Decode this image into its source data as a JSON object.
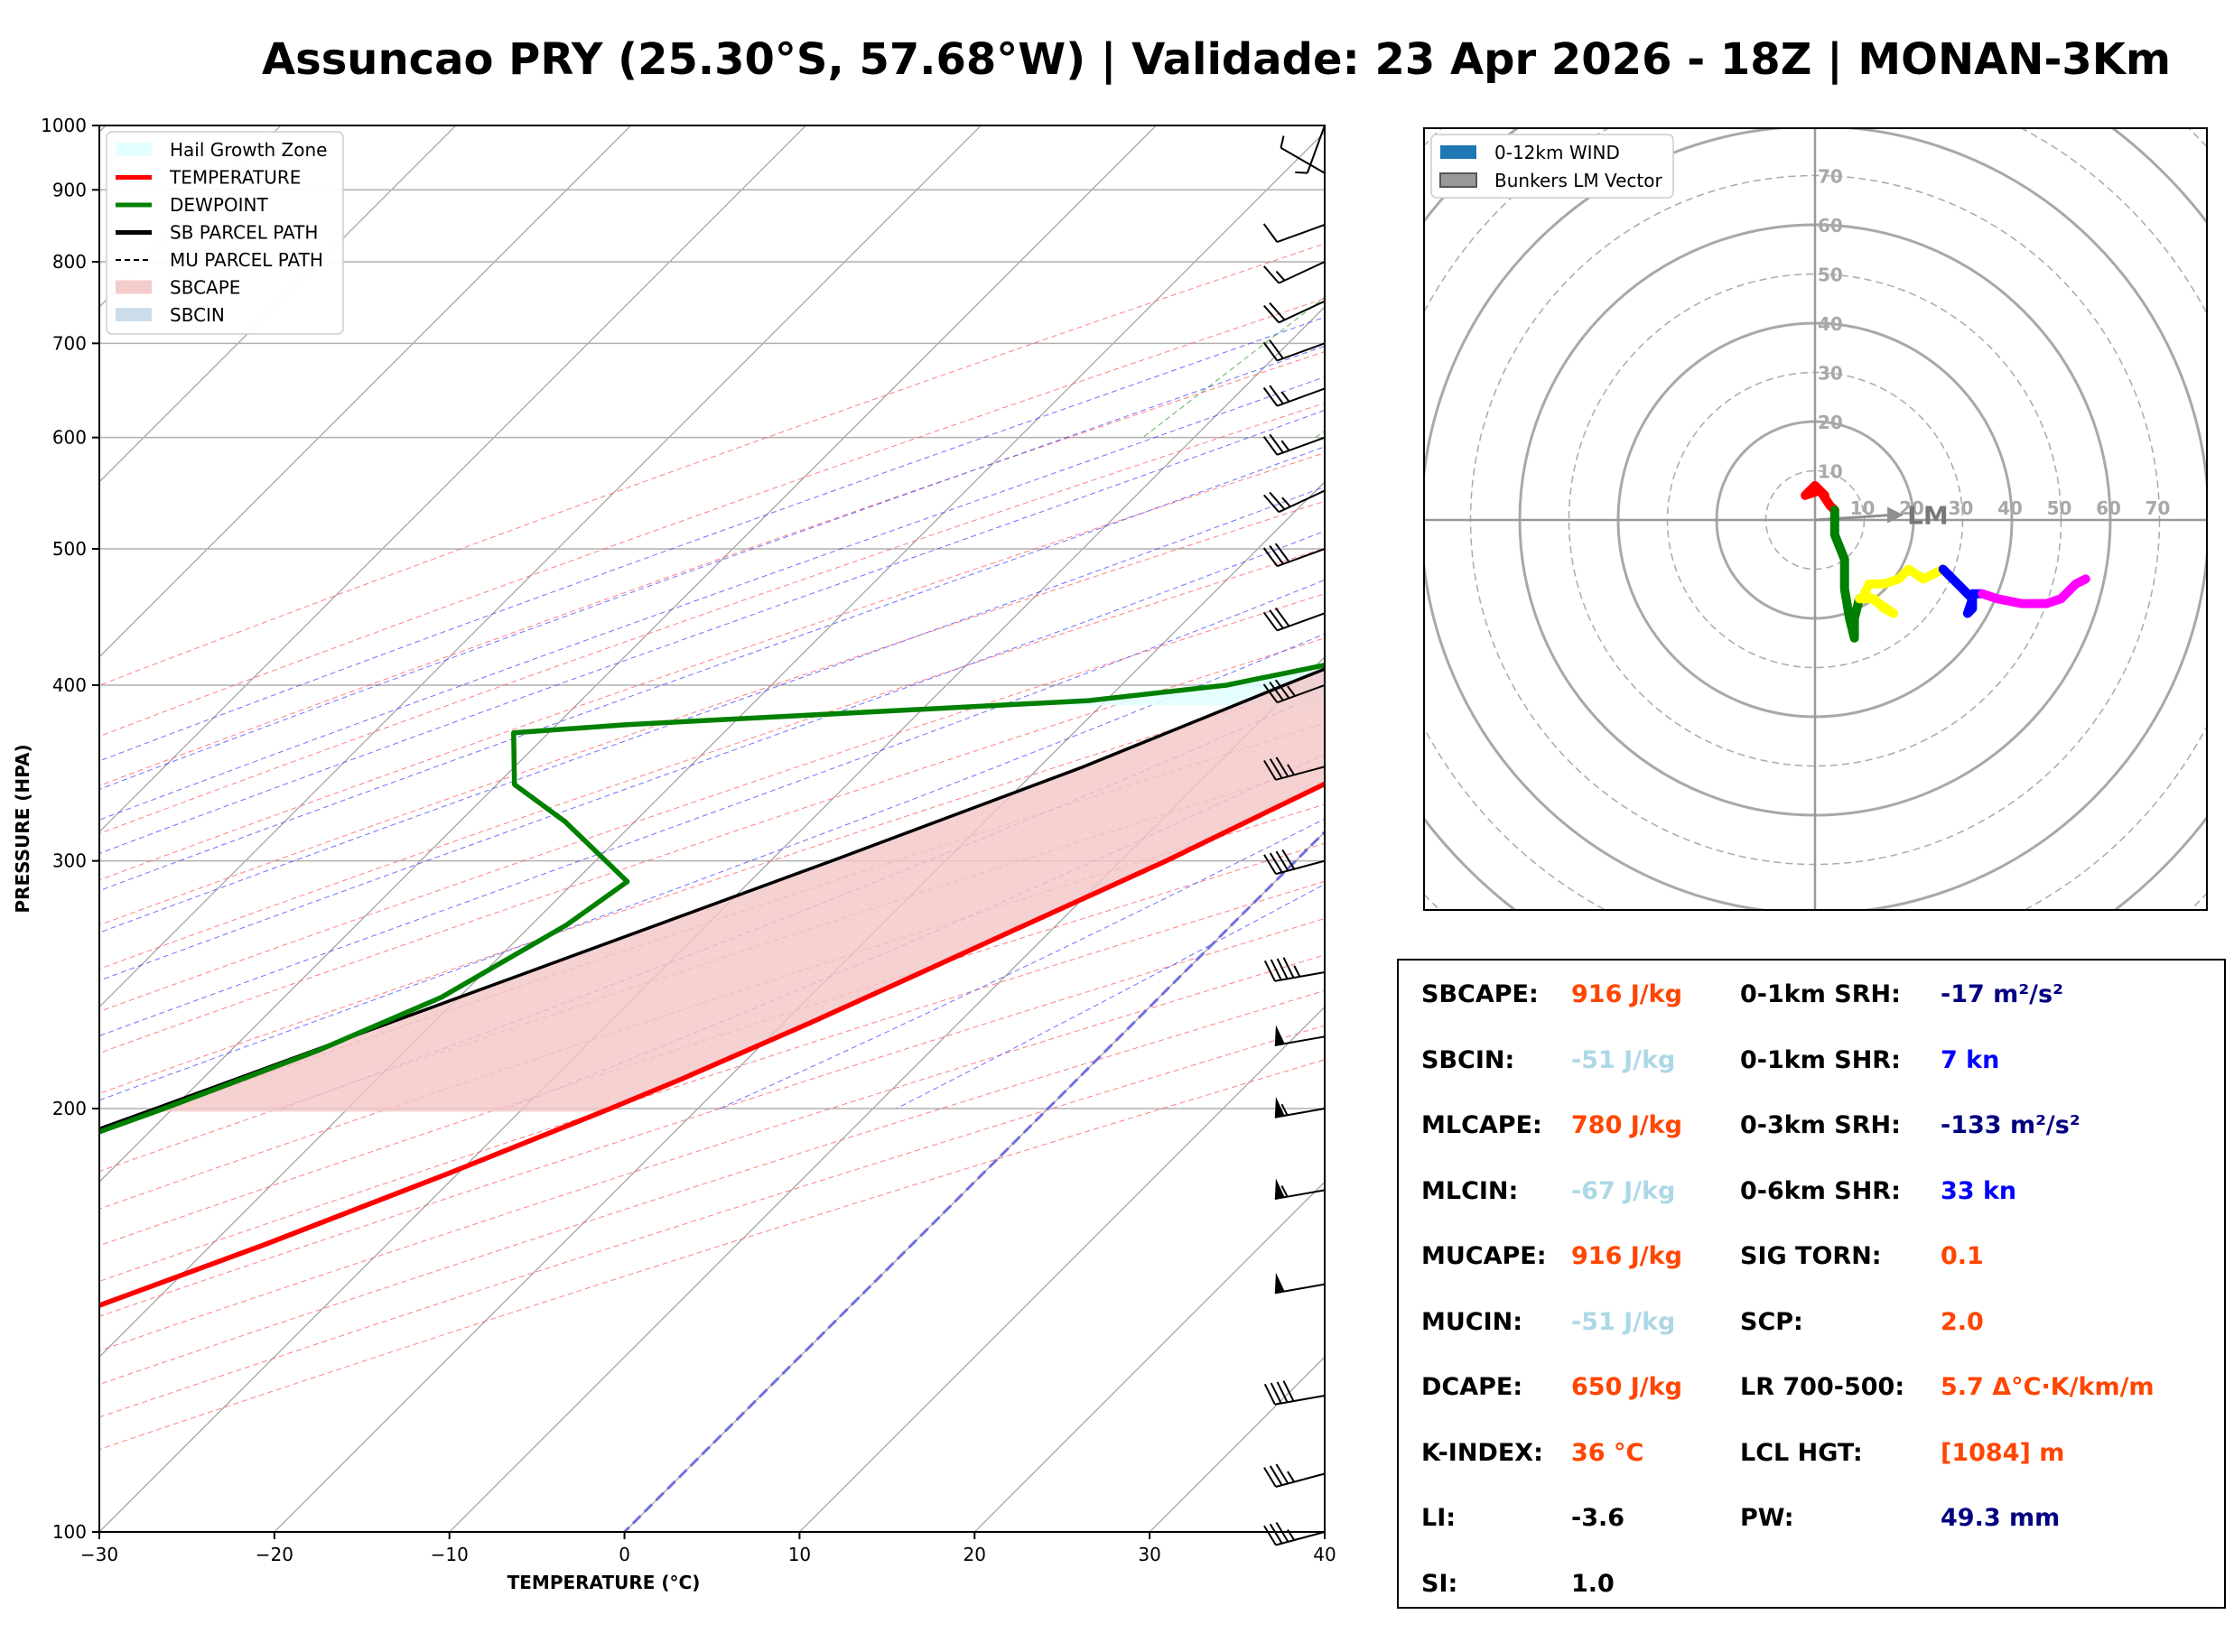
{
  "title": "Assuncao PRY (25.30°S, 57.68°W) | Validade: 23 Apr 2026 - 18Z | MONAN-3Km",
  "chart_data": [
    {
      "type": "line",
      "subtype": "skew-t log-p sounding",
      "xlabel": "TEMPERATURE (°C)",
      "ylabel": "PRESSURE (HPA)",
      "xlim": [
        -30,
        40
      ],
      "ylim": [
        1000,
        100
      ],
      "y_scale": "log",
      "x_ticks": [
        "−30",
        "−20",
        "−10",
        "0",
        "10",
        "20",
        "30",
        "40"
      ],
      "y_ticks": [
        "1000",
        "900",
        "800",
        "700",
        "600",
        "500",
        "400",
        "300",
        "200",
        "100"
      ],
      "legend_position": "upper-left",
      "legend": [
        {
          "label": "Hail Growth Zone",
          "color": "#e0ffff",
          "style": "fill"
        },
        {
          "label": "TEMPERATURE",
          "color": "#ff0000",
          "style": "line"
        },
        {
          "label": "DEWPOINT",
          "color": "#008000",
          "style": "line"
        },
        {
          "label": "SB PARCEL PATH",
          "color": "#000000",
          "style": "line"
        },
        {
          "label": "MU PARCEL PATH",
          "color": "#000000",
          "style": "dashed"
        },
        {
          "label": "SBCAPE",
          "color": "#f4c6c6",
          "style": "fill"
        },
        {
          "label": "SBCIN",
          "color": "#c6d8e8",
          "style": "fill"
        }
      ],
      "series": [
        {
          "name": "TEMPERATURE",
          "color": "#ff0000",
          "points": [
            [
              1000,
              28.5
            ],
            [
              975,
              26.5
            ],
            [
              950,
              25.4
            ],
            [
              925,
              25.4
            ],
            [
              900,
              26.0
            ],
            [
              875,
              25.0
            ],
            [
              850,
              24.5
            ],
            [
              825,
              23.5
            ],
            [
              800,
              21.6
            ],
            [
              775,
              19.8
            ],
            [
              750,
              18.6
            ],
            [
              725,
              17.9
            ],
            [
              700,
              18.5
            ],
            [
              650,
              16.6
            ],
            [
              600,
              14.4
            ],
            [
              550,
              11.9
            ],
            [
              500,
              9.1
            ],
            [
              450,
              6.5
            ],
            [
              400,
              4.3
            ],
            [
              370,
              1.6
            ],
            [
              350,
              -1.7
            ],
            [
              300,
              -7.4
            ],
            [
              270,
              -11.8
            ],
            [
              250,
              -15.0
            ],
            [
              230,
              -18.5
            ],
            [
              210,
              -22.6
            ],
            [
              200,
              -25.0
            ],
            [
              180,
              -30.5
            ],
            [
              160,
              -37.0
            ],
            [
              140,
              -45.0
            ],
            [
              120,
              -53.0
            ],
            [
              110,
              -55.5
            ],
            [
              100,
              -57.0
            ]
          ]
        },
        {
          "name": "DEWPOINT",
          "color": "#008000",
          "points": [
            [
              1000,
              20.3
            ],
            [
              975,
              20.6
            ],
            [
              950,
              21.4
            ],
            [
              935,
              18.4
            ],
            [
              925,
              17.0
            ],
            [
              910,
              15.5
            ],
            [
              900,
              15.2
            ],
            [
              880,
              15.2
            ],
            [
              860,
              14.0
            ],
            [
              840,
              11.1
            ],
            [
              825,
              9.7
            ],
            [
              800,
              14.2
            ],
            [
              780,
              16.4
            ],
            [
              760,
              18.0
            ],
            [
              740,
              16.9
            ],
            [
              700,
              14.6
            ],
            [
              650,
              14.1
            ],
            [
              620,
              12.0
            ],
            [
              600,
              10.1
            ],
            [
              560,
              4.4
            ],
            [
              530,
              1.0
            ],
            [
              500,
              -0.6
            ],
            [
              470,
              -6.0
            ],
            [
              430,
              -8.2
            ],
            [
              415,
              -9.0
            ],
            [
              400,
              -14.0
            ],
            [
              390,
              -21.0
            ],
            [
              375,
              -46.0
            ],
            [
              370,
              -52.0
            ],
            [
              340,
              -49.0
            ],
            [
              320,
              -44.0
            ],
            [
              290,
              -37.0
            ],
            [
              270,
              -38.0
            ],
            [
              240,
              -41.0
            ],
            [
              220,
              -45.0
            ],
            [
              200,
              -50.5
            ],
            [
              180,
              -57.0
            ],
            [
              160,
              -66.0
            ],
            [
              140,
              -71.0
            ],
            [
              120,
              -76.0
            ],
            [
              110,
              -77.0
            ],
            [
              100,
              -78.0
            ]
          ]
        },
        {
          "name": "SB PARCEL PATH",
          "color": "#000000",
          "points": [
            [
              1000,
              28.5
            ],
            [
              950,
              24.5
            ],
            [
              900,
              21.5
            ],
            [
              889,
              21.2
            ],
            [
              850,
              19.7
            ],
            [
              800,
              17.7
            ],
            [
              700,
              13.4
            ],
            [
              600,
              7.8
            ],
            [
              500,
              0.5
            ],
            [
              450,
              -4.5
            ],
            [
              400,
              -10.7
            ],
            [
              350,
              -17.5
            ],
            [
              300,
              -26.5
            ],
            [
              250,
              -37.5
            ],
            [
              200,
              -51.0
            ],
            [
              180,
              -57.5
            ],
            [
              160,
              -65.0
            ],
            [
              140,
              -73.5
            ],
            [
              120,
              -83.0
            ],
            [
              100,
              -95.0
            ]
          ]
        }
      ],
      "shaded_regions": [
        {
          "name": "SBCAPE",
          "between": [
            "SB PARCEL PATH",
            "TEMPERATURE"
          ],
          "from_hpa": 790,
          "to_hpa": 197
        },
        {
          "name": "SBCIN",
          "between": [
            "SB PARCEL PATH",
            "TEMPERATURE"
          ],
          "from_hpa": 889,
          "to_hpa": 790
        },
        {
          "name": "Hail Growth Zone",
          "from_hpa": 627,
          "to_hpa": 387
        }
      ],
      "wind_barbs_hpa": [
        1000,
        925,
        850,
        800,
        750,
        700,
        650,
        600,
        550,
        500,
        450,
        400,
        350,
        300,
        250,
        225,
        200,
        175,
        150,
        125,
        110,
        100
      ]
    },
    {
      "type": "line",
      "subtype": "hodograph",
      "ring_labels": [
        "10",
        "20",
        "30",
        "40",
        "50",
        "60",
        "70"
      ],
      "legend": [
        {
          "label": "0-12km WIND",
          "color": "#1f77b4"
        },
        {
          "label": "Bunkers LM Vector",
          "color": "#999999"
        }
      ],
      "lm_label": "LM",
      "lm_vector": [
        18,
        1
      ],
      "series": [
        {
          "name": "0-1km",
          "color": "#ff0000",
          "uv": [
            [
              2,
              5
            ],
            [
              0,
              7
            ],
            [
              -2,
              5
            ],
            [
              1,
              6
            ],
            [
              3,
              3
            ],
            [
              4,
              2
            ]
          ]
        },
        {
          "name": "1-3km",
          "color": "#008000",
          "uv": [
            [
              4,
              2
            ],
            [
              4,
              -3
            ],
            [
              6,
              -8
            ],
            [
              6,
              -14
            ],
            [
              7,
              -20
            ],
            [
              8,
              -24
            ],
            [
              8,
              -20
            ],
            [
              9,
              -16
            ]
          ]
        },
        {
          "name": "3-6km",
          "color": "#ffff00",
          "uv": [
            [
              9,
              -16
            ],
            [
              12,
              -16
            ],
            [
              14,
              -18
            ],
            [
              16,
              -19
            ],
            [
              13,
              -17
            ],
            [
              10,
              -15
            ],
            [
              11,
              -13
            ],
            [
              14,
              -13
            ],
            [
              17,
              -12
            ],
            [
              19,
              -10
            ],
            [
              22,
              -12
            ],
            [
              24,
              -11
            ],
            [
              26,
              -10
            ]
          ]
        },
        {
          "name": "6-9km",
          "color": "#0000ff",
          "uv": [
            [
              26,
              -10
            ],
            [
              29,
              -13
            ],
            [
              31,
              -15
            ],
            [
              32,
              -16
            ],
            [
              31,
              -19
            ],
            [
              32,
              -18
            ],
            [
              32,
              -15
            ],
            [
              34,
              -15
            ]
          ]
        },
        {
          "name": "9-12km",
          "color": "#ff00ff",
          "uv": [
            [
              34,
              -15
            ],
            [
              37,
              -16
            ],
            [
              42,
              -17
            ],
            [
              47,
              -17
            ],
            [
              50,
              -16
            ],
            [
              53,
              -13
            ],
            [
              55,
              -12
            ]
          ]
        }
      ]
    }
  ],
  "params": {
    "left": [
      {
        "label": "SBCAPE:",
        "value": "916 J/kg",
        "color": "#ff4500"
      },
      {
        "label": "SBCIN:",
        "value": "-51 J/kg",
        "color": "#add8e6"
      },
      {
        "label": "MLCAPE:",
        "value": "780 J/kg",
        "color": "#ff4500"
      },
      {
        "label": "MLCIN:",
        "value": "-67 J/kg",
        "color": "#add8e6"
      },
      {
        "label": "MUCAPE:",
        "value": "916 J/kg",
        "color": "#ff4500"
      },
      {
        "label": "MUCIN:",
        "value": "-51 J/kg",
        "color": "#add8e6"
      },
      {
        "label": "DCAPE:",
        "value": "650 J/kg",
        "color": "#ff4500"
      },
      {
        "label": "K-INDEX:",
        "value": "36 °C",
        "color": "#ff4500"
      },
      {
        "label": "LI:",
        "value": "-3.6",
        "color": "#000000"
      },
      {
        "label": "SI:",
        "value": "1.0",
        "color": "#000000"
      }
    ],
    "right": [
      {
        "label": "0-1km SRH:",
        "value": "-17 m²/s²",
        "color": "#000080"
      },
      {
        "label": "0-1km SHR:",
        "value": "7 kn",
        "color": "#0000ff"
      },
      {
        "label": "0-3km SRH:",
        "value": "-133 m²/s²",
        "color": "#000080"
      },
      {
        "label": "0-6km SHR:",
        "value": "33 kn",
        "color": "#0000ff"
      },
      {
        "label": "SIG TORN:",
        "value": "0.1",
        "color": "#ff4500"
      },
      {
        "label": "SCP:",
        "value": "2.0",
        "color": "#ff4500"
      },
      {
        "label": "LR 700-500:",
        "value": "5.7 Δ°C·K/km/m",
        "color": "#ff4500"
      },
      {
        "label": "LCL HGT:",
        "value": "[1084] m",
        "color": "#ff4500"
      },
      {
        "label": "PW:",
        "value": "49.3 mm",
        "color": "#000080"
      }
    ]
  }
}
